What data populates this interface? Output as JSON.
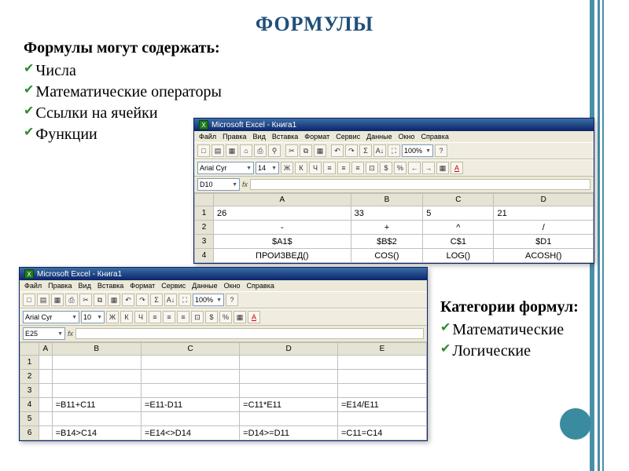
{
  "title": "ФОРМУЛЫ",
  "intro": {
    "lead": "Формулы могут содержать:",
    "items": [
      "Числа",
      "Математические операторы",
      "Ссылки на ячейки",
      "Функции"
    ]
  },
  "categories": {
    "lead": "Категории формул:",
    "items": [
      "Математические",
      "Логические"
    ]
  },
  "excel_common": {
    "app_title": "Microsoft Excel - Книга1",
    "menus": [
      "Файл",
      "Правка",
      "Вид",
      "Вставка",
      "Формат",
      "Сервис",
      "Данные",
      "Окно",
      "Справка"
    ],
    "font_name": "Arial Cyr",
    "font_size": "14",
    "zoom": "100%",
    "toolbar1_icons": [
      "□",
      "▤",
      "▦",
      "⌂",
      "⎙",
      "⚲",
      "✂",
      "⧉",
      "▦",
      "↶",
      "↷",
      "Σ",
      "A↓",
      "⛶",
      "?"
    ],
    "toolbar2_prefix_icons": [
      "Ж",
      "К",
      "Ч",
      "≡",
      "≡",
      "≡",
      "⊡",
      "$",
      "%",
      "←",
      "→",
      "▦",
      "A"
    ],
    "fx_label": "fx"
  },
  "excel1": {
    "namebox": "D10",
    "columns": [
      "A",
      "B",
      "C",
      "D"
    ],
    "rows": [
      {
        "n": "1",
        "cells": [
          "26",
          "33",
          "5",
          "21"
        ]
      },
      {
        "n": "2",
        "cells": [
          "-",
          "+",
          "^",
          "/"
        ]
      },
      {
        "n": "3",
        "cells": [
          "$A1$",
          "$B$2",
          "C$1",
          "$D1"
        ]
      },
      {
        "n": "4",
        "cells": [
          "ПРОИЗВЕД()",
          "COS()",
          "LOG()",
          "ACOSH()"
        ]
      }
    ]
  },
  "excel2": {
    "namebox": "E25",
    "font_size": "10",
    "columns": [
      "A",
      "B",
      "C",
      "D",
      "E"
    ],
    "rows": [
      {
        "n": "1",
        "cells": [
          "",
          "",
          "",
          "",
          ""
        ]
      },
      {
        "n": "2",
        "cells": [
          "",
          "",
          "",
          "",
          ""
        ]
      },
      {
        "n": "3",
        "cells": [
          "",
          "",
          "",
          "",
          ""
        ]
      },
      {
        "n": "4",
        "cells": [
          "",
          "=B11+C11",
          "=E11-D11",
          "=C11*E11",
          "=E14/E11"
        ]
      },
      {
        "n": "5",
        "cells": [
          "",
          "",
          "",
          "",
          ""
        ]
      },
      {
        "n": "6",
        "cells": [
          "",
          "=B14>C14",
          "=E14<>D14",
          "=D14>=D11",
          "=C11=C14"
        ]
      }
    ]
  },
  "colors": {
    "accent": "#4a8fa8",
    "title": "#1f4e79",
    "check": "#2e8b2e",
    "dot": "#3a8ba0"
  }
}
